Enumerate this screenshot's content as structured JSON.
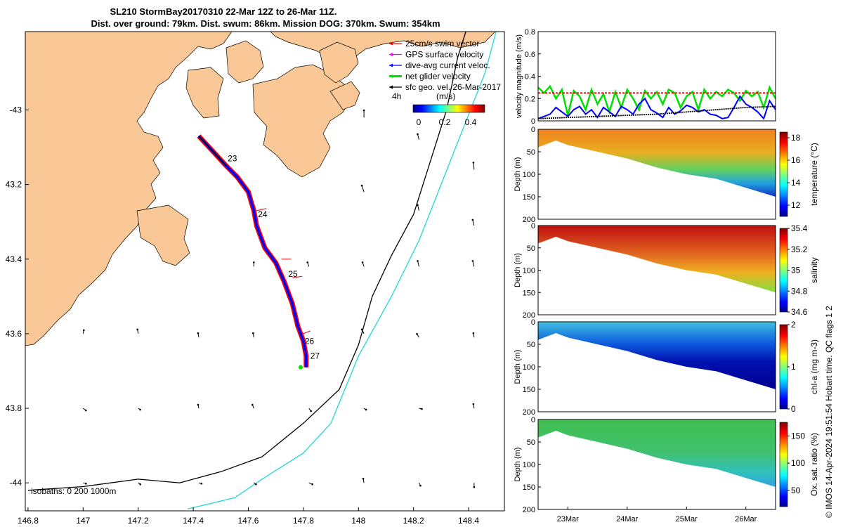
{
  "title": {
    "line1": "SL210 StormBay20170310 22-Mar 12Z to 26-Mar 11Z.",
    "line2": "Dist. over ground: 79km. Dist. swum: 86km. Mission DOG: 370km. Swum: 354km"
  },
  "colors": {
    "land": "#fac896",
    "track_red": "#ff0000",
    "dive_blue": "#0000ff",
    "glider_green": "#00e000",
    "isobath_200": "#000000",
    "isobath_1000": "#20d8d8"
  },
  "map": {
    "x_ticks": [
      "146.8",
      "147",
      "147.2",
      "147.4",
      "147.6",
      "147.8",
      "148",
      "148.2",
      "148.4"
    ],
    "y_ticks": [
      "-43",
      "43.2",
      "43.4",
      "43.6",
      "43.8",
      "-44"
    ],
    "legend": [
      {
        "label": "25cm/s swim vector",
        "color": "#ff0000"
      },
      {
        "label": "GPS surface velocity",
        "color": "#ff00ff"
      },
      {
        "label": "dive-avg current veloc.",
        "color": "#0000ff"
      },
      {
        "label": "net glider velocity",
        "color": "#00e000"
      },
      {
        "label": "sfc geo. vel. 26-Mar-2017",
        "color": "#000000"
      }
    ],
    "colorbar": {
      "left_label": "4h",
      "unit": "(m/s)",
      "ticks": [
        "0",
        "0.2",
        "0.4"
      ]
    },
    "day_labels": [
      {
        "text": "23",
        "lon": 147.52,
        "lat": -43.13
      },
      {
        "text": "24",
        "lon": 147.63,
        "lat": -43.28
      },
      {
        "text": "25",
        "lon": 147.74,
        "lat": -43.44
      },
      {
        "text": "26",
        "lon": 147.8,
        "lat": -43.62
      },
      {
        "text": "27",
        "lon": 147.82,
        "lat": -43.66
      }
    ],
    "isobath_note": "isobaths: 0   200  1000m"
  },
  "chart_data": [
    {
      "type": "line",
      "ylabel": "velocity magnitude (m/s)",
      "ylim": [
        0,
        0.8
      ],
      "y_ticks": [
        "0",
        "0.2",
        "0.4",
        "0.6",
        "0.8"
      ],
      "series": [
        {
          "color": "#00e000",
          "x_days": [
            22.5,
            22.6,
            22.7,
            22.8,
            22.9,
            23.0,
            23.1,
            23.2,
            23.3,
            23.4,
            23.5,
            23.6,
            23.7,
            23.8,
            23.9,
            24.0,
            24.1,
            24.2,
            24.3,
            24.4,
            24.5,
            24.6,
            24.7,
            24.8,
            24.9,
            25.0,
            25.1,
            25.2,
            25.3,
            25.4,
            25.5,
            25.6,
            25.7,
            25.8,
            25.9,
            26.0,
            26.1,
            26.2,
            26.3,
            26.4,
            26.5
          ],
          "values": [
            0.3,
            0.25,
            0.31,
            0.2,
            0.28,
            0.05,
            0.27,
            0.22,
            0.1,
            0.28,
            0.15,
            0.24,
            0.08,
            0.26,
            0.12,
            0.28,
            0.2,
            0.1,
            0.27,
            0.2,
            0.26,
            0.15,
            0.28,
            0.25,
            0.12,
            0.22,
            0.26,
            0.1,
            0.28,
            0.2,
            0.26,
            0.22,
            0.28,
            0.25,
            0.18,
            0.27,
            0.22,
            0.26,
            0.12,
            0.3,
            0.2
          ]
        },
        {
          "color": "#0000ff",
          "x_days": [
            22.5,
            22.6,
            22.7,
            22.8,
            22.9,
            23.0,
            23.1,
            23.2,
            23.3,
            23.4,
            23.5,
            23.6,
            23.7,
            23.8,
            23.9,
            24.0,
            24.1,
            24.2,
            24.3,
            24.4,
            24.5,
            24.6,
            24.7,
            24.8,
            24.9,
            25.0,
            25.1,
            25.2,
            25.3,
            25.4,
            25.5,
            25.6,
            25.7,
            25.8,
            25.9,
            26.0,
            26.1,
            26.2,
            26.3,
            26.4,
            26.5
          ],
          "values": [
            0.02,
            0.04,
            0.06,
            0.12,
            0.08,
            0.04,
            0.1,
            0.13,
            0.06,
            0.1,
            0.03,
            0.12,
            0.08,
            0.04,
            0.13,
            0.1,
            0.06,
            0.15,
            0.2,
            0.1,
            0.07,
            0.03,
            0.12,
            0.06,
            0.09,
            0.14,
            0.12,
            0.08,
            0.1,
            0.06,
            0.05,
            0.02,
            0.03,
            0.12,
            0.22,
            0.15,
            0.12,
            0.08,
            0.02,
            0.18,
            0.1
          ]
        },
        {
          "color": "#000000",
          "x_days": [
            22.5,
            23.0,
            23.5,
            24.0,
            24.5,
            25.0,
            25.5,
            26.0,
            26.5
          ],
          "values": [
            0.02,
            0.03,
            0.04,
            0.05,
            0.06,
            0.08,
            0.1,
            0.12,
            0.13
          ]
        },
        {
          "color": "#ff0000",
          "x_days": [
            22.5,
            26.5
          ],
          "values": [
            0.25,
            0.25
          ]
        }
      ]
    },
    {
      "type": "heatmap",
      "ylabel": "Depth (m)",
      "y_ticks": [
        "0",
        "50",
        "100",
        "150",
        "200"
      ],
      "colorbar_label": "temperature (°C)",
      "colorbar_ticks": [
        "12",
        "14",
        "16",
        "18"
      ],
      "clim": [
        11,
        18.5
      ]
    },
    {
      "type": "heatmap",
      "ylabel": "Depth (m)",
      "y_ticks": [
        "0",
        "50",
        "100",
        "150",
        "200"
      ],
      "colorbar_label": "salinity",
      "colorbar_ticks": [
        "34.6",
        "34.8",
        "35",
        "35.2",
        "35.4"
      ],
      "clim": [
        34.6,
        35.4
      ]
    },
    {
      "type": "heatmap",
      "ylabel": "Depth (m)",
      "y_ticks": [
        "0",
        "50",
        "100",
        "150",
        "200"
      ],
      "colorbar_label": "chl-a (mg m-3)",
      "colorbar_ticks": [
        "0",
        "1",
        "2"
      ],
      "clim": [
        0,
        2
      ]
    },
    {
      "type": "heatmap",
      "ylabel": "Depth (m)",
      "y_ticks": [
        "0",
        "50",
        "100",
        "150",
        "200"
      ],
      "colorbar_label": "Ox. sat. ratio (%)",
      "colorbar_ticks": [
        "50",
        "100",
        "150"
      ],
      "clim": [
        20,
        175
      ],
      "x_ticks": [
        "23Mar",
        "24Mar",
        "25Mar",
        "26Mar"
      ]
    }
  ],
  "sidebar_note": "© IMOS 14-Apr-2024 19:51:54 Hobart time. QC flags 1  2"
}
